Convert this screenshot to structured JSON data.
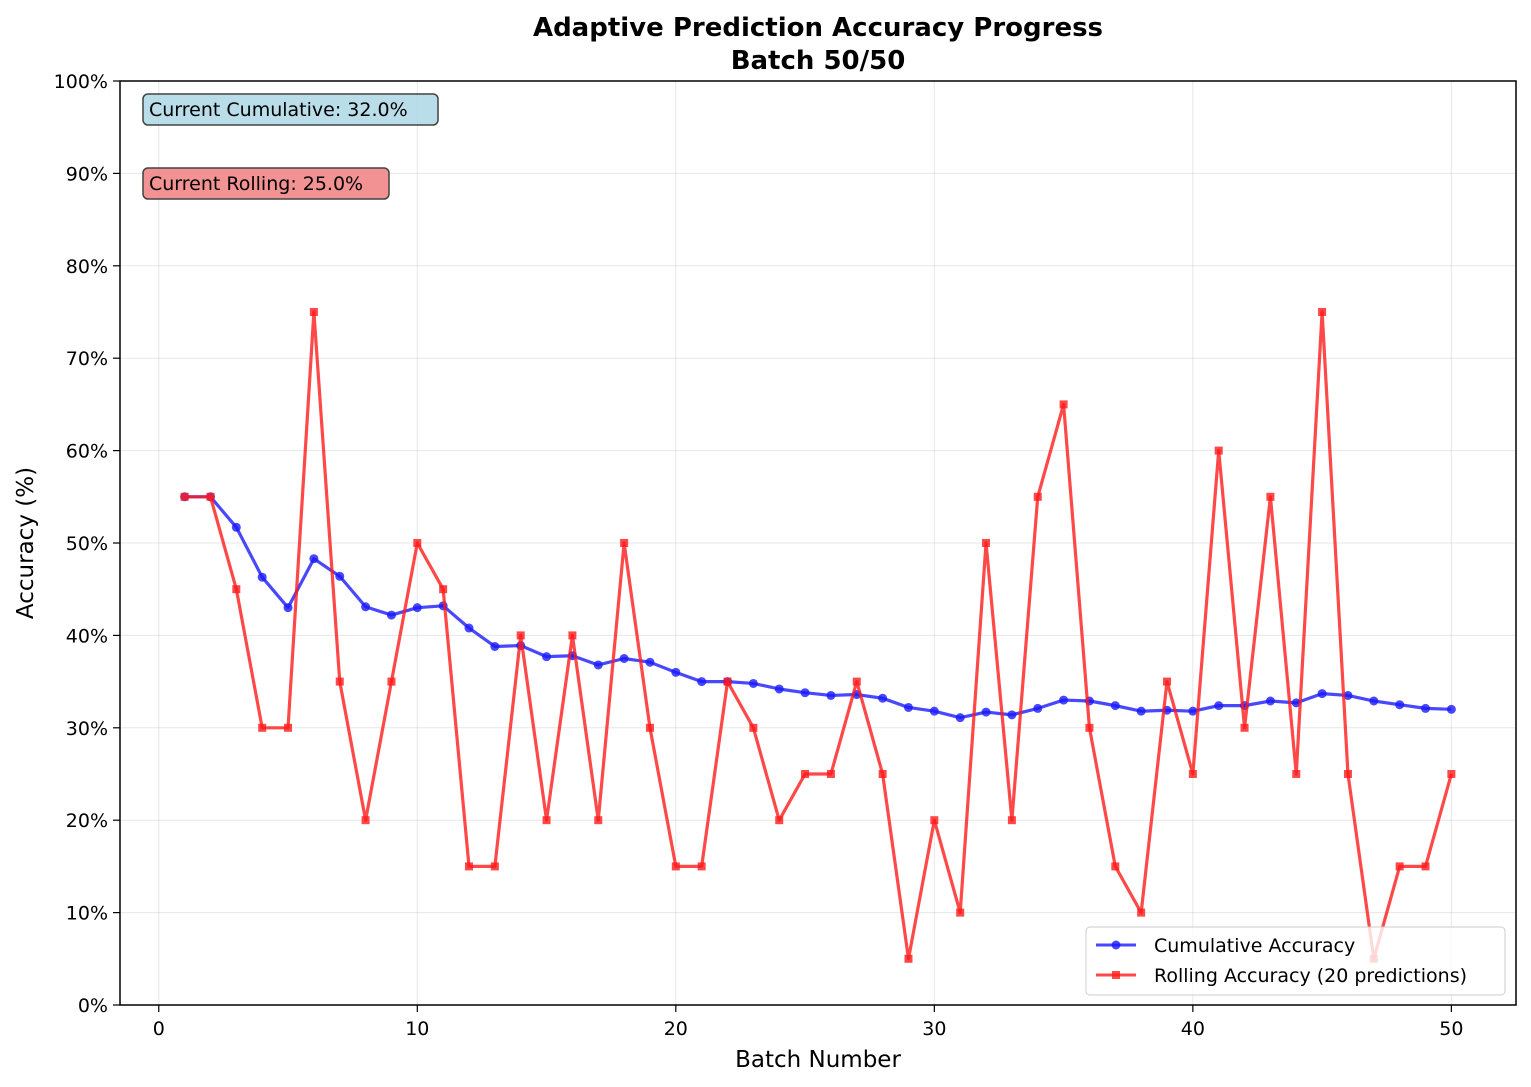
{
  "chart_data": {
    "type": "line",
    "title": "Adaptive Prediction Accuracy Progress",
    "subtitle": "Batch 50/50",
    "xlabel": "Batch Number",
    "ylabel": "Accuracy (%)",
    "xlim": [
      -1.5,
      52.5
    ],
    "ylim": [
      0,
      100
    ],
    "x_ticks": [
      0,
      10,
      20,
      30,
      40,
      50
    ],
    "y_ticks": [
      0,
      10,
      20,
      30,
      40,
      50,
      60,
      70,
      80,
      90,
      100
    ],
    "y_tick_suffix": "%",
    "grid": true,
    "legend_position": "lower-right",
    "x": [
      1,
      2,
      3,
      4,
      5,
      6,
      7,
      8,
      9,
      10,
      11,
      12,
      13,
      14,
      15,
      16,
      17,
      18,
      19,
      20,
      21,
      22,
      23,
      24,
      25,
      26,
      27,
      28,
      29,
      30,
      31,
      32,
      33,
      34,
      35,
      36,
      37,
      38,
      39,
      40,
      41,
      42,
      43,
      44,
      45,
      46,
      47,
      48,
      49,
      50
    ],
    "series": [
      {
        "name": "Cumulative Accuracy",
        "color": "#1a1aff",
        "marker": "circle",
        "values": [
          55.0,
          55.0,
          51.7,
          46.3,
          43.0,
          48.3,
          46.4,
          43.1,
          42.2,
          43.0,
          43.2,
          40.8,
          38.8,
          38.9,
          37.7,
          37.8,
          36.8,
          37.5,
          37.1,
          36.0,
          35.0,
          35.0,
          34.8,
          34.2,
          33.8,
          33.5,
          33.6,
          33.2,
          32.2,
          31.8,
          31.1,
          31.7,
          31.4,
          32.1,
          33.0,
          32.9,
          32.4,
          31.8,
          31.9,
          31.8,
          32.4,
          32.4,
          32.9,
          32.7,
          33.7,
          33.5,
          32.9,
          32.5,
          32.1,
          32.0
        ]
      },
      {
        "name": "Rolling Accuracy (20 predictions)",
        "color": "#ff1a1a",
        "marker": "square",
        "values": [
          55,
          55,
          45,
          30,
          30,
          75,
          35,
          20,
          35,
          50,
          45,
          15,
          15,
          40,
          20,
          40,
          20,
          50,
          30,
          15,
          15,
          35,
          30,
          20,
          25,
          25,
          35,
          25,
          5,
          20,
          10,
          50,
          20,
          55,
          65,
          30,
          15,
          10,
          35,
          25,
          60,
          30,
          55,
          25,
          75,
          25,
          5,
          15,
          15,
          25
        ]
      }
    ],
    "annotations": [
      {
        "text": "Current Cumulative: 32.0%",
        "bg": "#add8e6"
      },
      {
        "text": "Current Rolling: 25.0%",
        "bg": "#f08080"
      }
    ]
  }
}
